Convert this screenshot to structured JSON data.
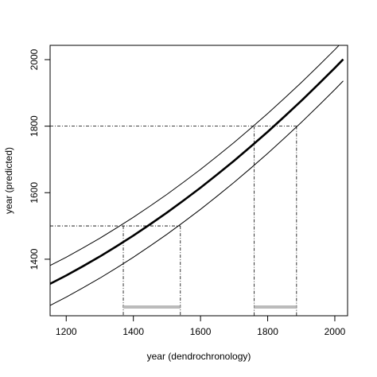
{
  "chart_data": {
    "type": "line",
    "x_label": "year (dendrochronology)",
    "y_label": "year (predicted)",
    "x": [
      1150,
      1200,
      1250,
      1300,
      1350,
      1400,
      1450,
      1500,
      1550,
      1600,
      1650,
      1700,
      1750,
      1800,
      1850,
      1900,
      1950,
      2000,
      2025
    ],
    "series": [
      {
        "color": "#000000",
        "line_width": 1,
        "values": [
          1380,
          1406,
          1434,
          1463,
          1494,
          1526,
          1560,
          1595,
          1632,
          1670,
          1710,
          1751,
          1794,
          1838,
          1884,
          1931,
          1980,
          2030,
          2056
        ]
      },
      {
        "color": "#000000",
        "line_width": 2.6,
        "values": [
          1325,
          1351,
          1379,
          1408,
          1439,
          1471,
          1505,
          1540,
          1577,
          1615,
          1655,
          1696,
          1739,
          1783,
          1829,
          1876,
          1925,
          1975,
          2001
        ]
      },
      {
        "color": "#000000",
        "line_width": 1,
        "values": [
          1260,
          1286,
          1314,
          1343,
          1374,
          1406,
          1440,
          1475,
          1512,
          1550,
          1590,
          1631,
          1674,
          1718,
          1764,
          1811,
          1860,
          1910,
          1936
        ]
      }
    ],
    "intervals": [
      {
        "y": 1500,
        "x": [
          1370,
          1540
        ]
      },
      {
        "y": 1800,
        "x": [
          1760,
          1886
        ]
      }
    ],
    "interval_color": "#bbbbbb",
    "xlim": [
      1152,
      2038
    ],
    "xticks": [
      1200,
      1400,
      1600,
      1800,
      2000
    ],
    "ylim": [
      1230,
      2043
    ],
    "yticks": [
      1400,
      1600,
      1800,
      2000
    ]
  }
}
